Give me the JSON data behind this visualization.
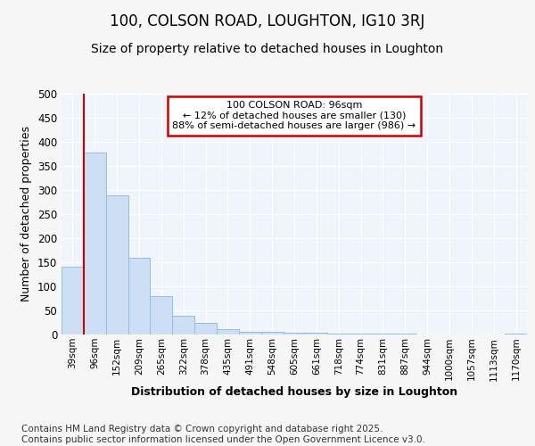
{
  "title1": "100, COLSON ROAD, LOUGHTON, IG10 3RJ",
  "title2": "Size of property relative to detached houses in Loughton",
  "xlabel": "Distribution of detached houses by size in Loughton",
  "ylabel": "Number of detached properties",
  "footer": "Contains HM Land Registry data © Crown copyright and database right 2025.\nContains public sector information licensed under the Open Government Licence v3.0.",
  "bin_labels": [
    "39sqm",
    "96sqm",
    "152sqm",
    "209sqm",
    "265sqm",
    "322sqm",
    "378sqm",
    "435sqm",
    "491sqm",
    "548sqm",
    "605sqm",
    "661sqm",
    "718sqm",
    "774sqm",
    "831sqm",
    "887sqm",
    "944sqm",
    "1000sqm",
    "1057sqm",
    "1113sqm",
    "1170sqm"
  ],
  "bar_values": [
    140,
    378,
    289,
    160,
    79,
    38,
    25,
    11,
    6,
    6,
    4,
    4,
    2,
    1,
    1,
    1,
    0,
    0,
    0,
    0,
    2
  ],
  "bar_color": "#ccdff5",
  "bar_edge_color": "#92bce0",
  "highlight_bin_index": 1,
  "highlight_line_color": "#cc0000",
  "annotation_text": "100 COLSON ROAD: 96sqm\n← 12% of detached houses are smaller (130)\n88% of semi-detached houses are larger (986) →",
  "annotation_box_color": "#cc0000",
  "ylim": [
    0,
    500
  ],
  "yticks": [
    0,
    50,
    100,
    150,
    200,
    250,
    300,
    350,
    400,
    450,
    500
  ],
  "bg_color": "#f7f7f7",
  "plot_bg_color": "#f0f4fb",
  "grid_color": "#ffffff",
  "title1_fontsize": 12,
  "title2_fontsize": 10,
  "xlabel_fontsize": 9,
  "ylabel_fontsize": 9,
  "footer_fontsize": 7.5
}
